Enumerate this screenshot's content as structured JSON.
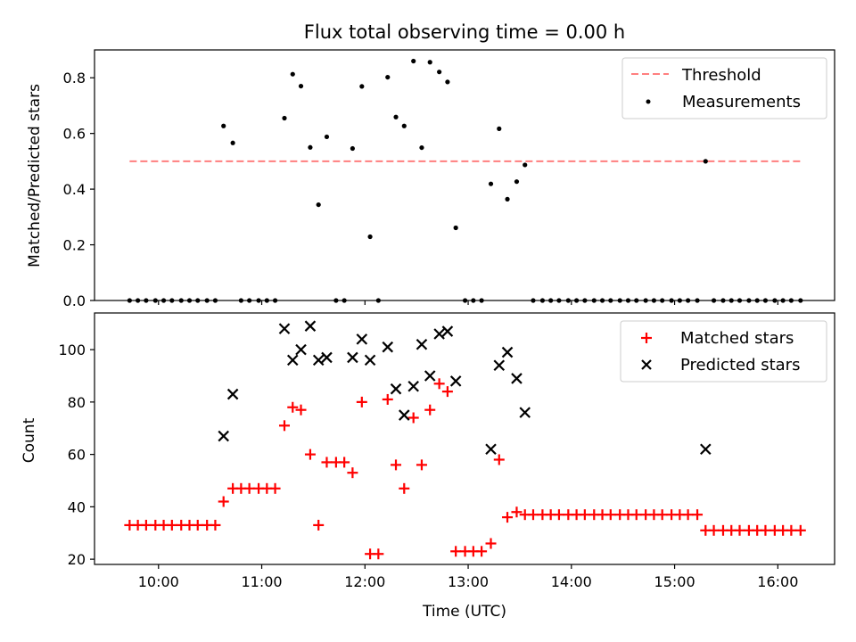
{
  "chart_data": [
    {
      "type": "scatter",
      "title": "Flux total observing time = 0.00 h",
      "xlabel": "",
      "ylabel": "Matched/Predicted stars",
      "ylim": [
        0,
        0.9
      ],
      "yticks": [
        "0.0",
        "0.2",
        "0.4",
        "0.6",
        "0.8"
      ],
      "grid": false,
      "legend_position": "top-right",
      "threshold": {
        "name": "Threshold",
        "value": 0.5,
        "x_start": 9.72,
        "x_end": 16.25,
        "color": "#ff7f7f"
      },
      "series": [
        {
          "name": "Measurements",
          "color": "#000000",
          "x": [
            9.72,
            9.8,
            9.88,
            9.97,
            10.05,
            10.13,
            10.22,
            10.3,
            10.38,
            10.47,
            10.55,
            10.63,
            10.72,
            10.8,
            10.88,
            10.97,
            11.05,
            11.13,
            11.22,
            11.3,
            11.38,
            11.47,
            11.55,
            11.63,
            11.72,
            11.8,
            11.88,
            11.97,
            12.05,
            12.13,
            12.22,
            12.3,
            12.38,
            12.47,
            12.55,
            12.63,
            12.72,
            12.8,
            12.88,
            12.97,
            13.05,
            13.13,
            13.22,
            13.3,
            13.38,
            13.47,
            13.55,
            13.63,
            13.72,
            13.8,
            13.88,
            13.97,
            14.05,
            14.13,
            14.22,
            14.3,
            14.38,
            14.47,
            14.55,
            14.63,
            14.72,
            14.8,
            14.88,
            14.97,
            15.05,
            15.13,
            15.22,
            15.3,
            15.38,
            15.47,
            15.55,
            15.63,
            15.72,
            15.8,
            15.88,
            15.97,
            16.05,
            16.13,
            16.22
          ],
          "y": [
            0,
            0,
            0,
            0,
            0,
            0,
            0,
            0,
            0,
            0,
            0,
            0.627,
            0.566,
            0,
            0,
            0,
            0,
            0,
            0.655,
            0.813,
            0.77,
            0.55,
            0.344,
            0.588,
            0,
            0,
            0.546,
            0.769,
            0.229,
            0,
            0.802,
            0.659,
            0.627,
            0.86,
            0.549,
            0.856,
            0.821,
            0.785,
            0.261,
            0,
            0,
            0,
            0.419,
            0.617,
            0.364,
            0.427,
            0.487,
            0,
            0,
            0,
            0,
            0,
            0,
            0,
            0,
            0,
            0,
            0,
            0,
            0,
            0,
            0,
            0,
            0,
            0,
            0,
            0,
            0.5,
            0,
            0,
            0,
            0,
            0,
            0,
            0,
            0,
            0,
            0,
            0
          ]
        }
      ]
    },
    {
      "type": "scatter",
      "title": "",
      "xlabel": "Time (UTC)",
      "ylabel": "Count",
      "ylim": [
        18,
        114
      ],
      "yticks": [
        "20",
        "40",
        "60",
        "80",
        "100"
      ],
      "xlim": [
        9.38,
        16.55
      ],
      "xticks": [
        {
          "value": 10,
          "label": "10:00"
        },
        {
          "value": 11,
          "label": "11:00"
        },
        {
          "value": 12,
          "label": "12:00"
        },
        {
          "value": 13,
          "label": "13:00"
        },
        {
          "value": 14,
          "label": "14:00"
        },
        {
          "value": 15,
          "label": "15:00"
        },
        {
          "value": 16,
          "label": "16:00"
        }
      ],
      "grid": false,
      "legend_position": "top-right",
      "series": [
        {
          "name": "Matched stars",
          "color": "#ff0000",
          "marker": "+",
          "x": [
            9.72,
            9.8,
            9.88,
            9.97,
            10.05,
            10.13,
            10.22,
            10.3,
            10.38,
            10.47,
            10.55,
            10.63,
            10.72,
            10.8,
            10.88,
            10.97,
            11.05,
            11.13,
            11.22,
            11.3,
            11.38,
            11.47,
            11.55,
            11.63,
            11.72,
            11.8,
            11.88,
            11.97,
            12.05,
            12.13,
            12.22,
            12.3,
            12.38,
            12.47,
            12.55,
            12.63,
            12.72,
            12.8,
            12.88,
            12.97,
            13.05,
            13.13,
            13.22,
            13.3,
            13.38,
            13.47,
            13.55,
            13.63,
            13.72,
            13.8,
            13.88,
            13.97,
            14.05,
            14.13,
            14.22,
            14.3,
            14.38,
            14.47,
            14.55,
            14.63,
            14.72,
            14.8,
            14.88,
            14.97,
            15.05,
            15.13,
            15.22,
            15.3,
            15.38,
            15.47,
            15.55,
            15.63,
            15.72,
            15.8,
            15.88,
            15.97,
            16.05,
            16.13,
            16.22
          ],
          "y": [
            33,
            33,
            33,
            33,
            33,
            33,
            33,
            33,
            33,
            33,
            33,
            42,
            47,
            47,
            47,
            47,
            47,
            47,
            71,
            78,
            77,
            60,
            33,
            57,
            57,
            57,
            53,
            80,
            22,
            22,
            81,
            56,
            47,
            74,
            56,
            77,
            87,
            84,
            23,
            23,
            23,
            23,
            26,
            58,
            36,
            38,
            37,
            37,
            37,
            37,
            37,
            37,
            37,
            37,
            37,
            37,
            37,
            37,
            37,
            37,
            37,
            37,
            37,
            37,
            37,
            37,
            37,
            31,
            31,
            31,
            31,
            31,
            31,
            31,
            31,
            31,
            31,
            31,
            31
          ]
        },
        {
          "name": "Predicted stars",
          "color": "#000000",
          "marker": "x",
          "x": [
            10.63,
            10.72,
            11.22,
            11.3,
            11.38,
            11.47,
            11.55,
            11.63,
            11.88,
            11.97,
            12.05,
            12.22,
            12.3,
            12.38,
            12.47,
            12.55,
            12.63,
            12.72,
            12.8,
            12.88,
            13.22,
            13.3,
            13.38,
            13.47,
            13.55,
            15.3
          ],
          "y": [
            67,
            83,
            108,
            96,
            100,
            109,
            96,
            97,
            97,
            104,
            96,
            101,
            85,
            75,
            86,
            102,
            90,
            106,
            107,
            88,
            62,
            94,
            99,
            89,
            76,
            62
          ]
        }
      ]
    }
  ]
}
